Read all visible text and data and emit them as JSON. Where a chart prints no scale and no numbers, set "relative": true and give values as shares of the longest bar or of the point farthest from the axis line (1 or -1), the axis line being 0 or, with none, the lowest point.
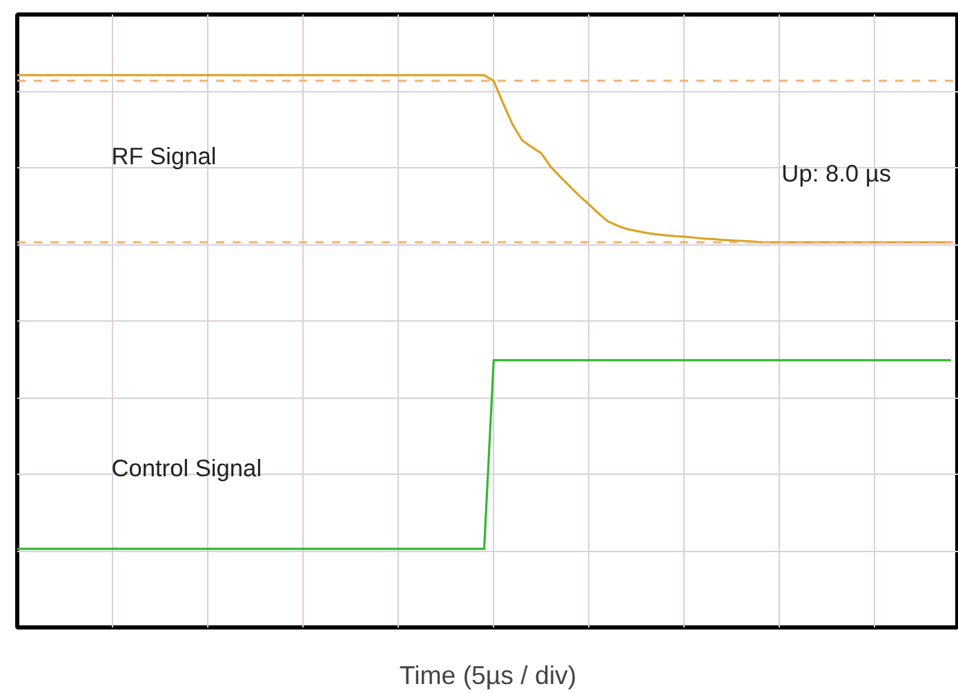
{
  "chart_data": {
    "type": "line",
    "relative": true,
    "xlabel": "Time (5µs / div)",
    "categories": [
      null,
      null,
      null,
      null,
      null,
      null,
      null,
      null,
      null,
      null,
      null,
      null,
      null,
      null,
      null,
      null,
      null,
      null,
      null,
      null,
      null,
      null,
      null,
      null,
      null,
      null,
      null,
      null,
      null,
      null,
      null,
      null,
      null,
      null,
      null,
      null,
      null,
      null,
      null,
      null,
      null,
      null,
      null,
      null,
      null,
      null,
      null,
      null,
      null,
      null,
      null,
      null,
      null,
      null,
      null,
      null,
      null,
      null,
      null,
      null,
      null,
      null,
      null,
      null,
      null,
      null,
      null,
      null,
      null,
      null,
      null,
      null,
      null,
      null,
      null,
      null,
      null,
      null,
      null,
      null,
      null,
      null,
      null,
      null,
      null,
      null,
      null,
      null,
      null,
      null,
      null,
      null,
      null,
      null,
      null,
      null,
      null,
      null,
      null
    ],
    "series": [
      {
        "name": "RF Signal",
        "color": "#d9a528",
        "values": [
          1.0,
          1.0,
          1.0,
          1.0,
          1.0,
          1.0,
          1.0,
          1.0,
          1.0,
          1.0,
          1.0,
          1.0,
          1.0,
          1.0,
          1.0,
          1.0,
          1.0,
          1.0,
          1.0,
          1.0,
          1.0,
          1.0,
          1.0,
          1.0,
          1.0,
          1.0,
          1.0,
          1.0,
          1.0,
          1.0,
          1.0,
          1.0,
          1.0,
          1.0,
          1.0,
          1.0,
          1.0,
          1.0,
          1.0,
          1.0,
          1.0,
          1.0,
          1.0,
          1.0,
          1.0,
          1.0,
          1.0,
          1.0,
          1.0,
          1.0,
          0.988,
          0.94,
          0.895,
          0.862,
          0.848,
          0.835,
          0.806,
          0.785,
          0.765,
          0.745,
          0.727,
          0.708,
          0.691,
          0.682,
          0.675,
          0.671,
          0.667,
          0.664,
          0.662,
          0.66,
          0.659,
          0.657,
          0.655,
          0.654,
          0.652,
          0.651,
          0.65,
          0.649,
          0.647,
          0.647,
          0.647,
          0.647,
          0.647,
          0.647,
          0.647,
          0.647,
          0.647,
          0.647,
          0.647,
          0.647,
          0.647,
          0.647,
          0.647,
          0.647,
          0.647,
          0.647,
          0.647,
          0.647,
          0.647
        ]
      },
      {
        "name": "Control Signal",
        "color": "#33b833",
        "values": [
          0,
          0,
          0,
          0,
          0,
          0,
          0,
          0,
          0,
          0,
          0,
          0,
          0,
          0,
          0,
          0,
          0,
          0,
          0,
          0,
          0,
          0,
          0,
          0,
          0,
          0,
          0,
          0,
          0,
          0,
          0,
          0,
          0,
          0,
          0,
          0,
          0,
          0,
          0,
          0,
          0,
          0,
          0,
          0,
          0,
          0,
          0,
          0,
          0,
          0,
          0.398,
          0.398,
          0.398,
          0.398,
          0.398,
          0.398,
          0.398,
          0.398,
          0.398,
          0.398,
          0.398,
          0.398,
          0.398,
          0.398,
          0.398,
          0.398,
          0.398,
          0.398,
          0.398,
          0.398,
          0.398,
          0.398,
          0.398,
          0.398,
          0.398,
          0.398,
          0.398,
          0.398,
          0.398,
          0.398,
          0.398,
          0.398,
          0.398,
          0.398,
          0.398,
          0.398,
          0.398,
          0.398,
          0.398,
          0.398,
          0.398,
          0.398,
          0.398,
          0.398,
          0.398,
          0.398,
          0.398,
          0.398,
          0.398
        ]
      }
    ],
    "grid": true,
    "marker": "none",
    "line_style": "solid",
    "ref_lines": [
      {
        "axis": "y",
        "value": 0.988,
        "color": "#f5b070",
        "line_style": "dashed"
      },
      {
        "axis": "y",
        "value": 0.647,
        "color": "#f5b070",
        "line_style": "dashed"
      }
    ],
    "annotations": [
      "Up: 8.0 µs"
    ]
  }
}
